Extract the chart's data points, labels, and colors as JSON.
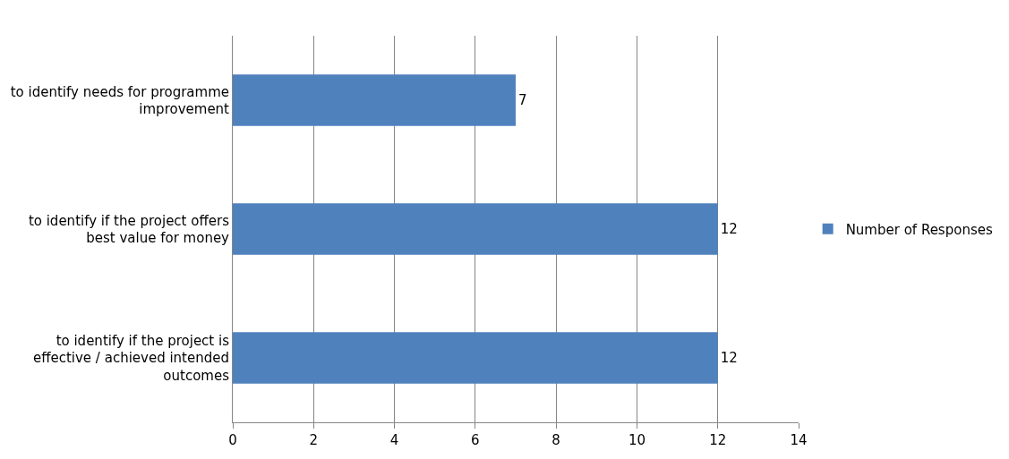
{
  "chart_data": {
    "type": "bar",
    "orientation": "horizontal",
    "categories": [
      "to identify needs for programme improvement",
      "to identify if the project offers best value for money",
      "to identify if the project is effective / achieved intended outcomes"
    ],
    "series": [
      {
        "name": "Number of Responses",
        "color": "#4f81bd",
        "values": [
          7,
          12,
          12
        ]
      }
    ],
    "xlim": [
      0,
      14
    ],
    "xticks": [
      0,
      2,
      4,
      6,
      8,
      10,
      12,
      14
    ],
    "grid": "x",
    "legend": "right",
    "data_labels": true
  }
}
